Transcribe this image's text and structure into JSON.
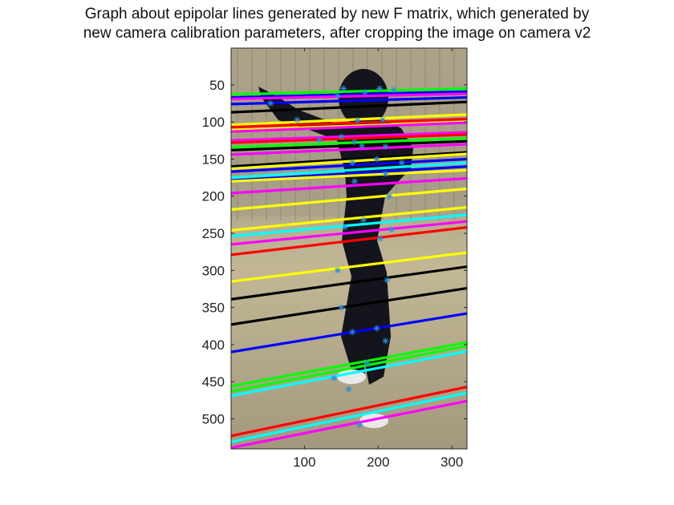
{
  "chart_data": {
    "type": "image",
    "title": [
      "Graph about epipolar lines generated by new F matrix, which generated by",
      "new camera calibration parameters, after cropping the image  on camera v2"
    ],
    "xlim": [
      0.5,
      320.5
    ],
    "ylim": [
      0.5,
      540.5
    ],
    "y_direction": "reversed",
    "x_ticks": [
      100,
      200,
      300
    ],
    "y_ticks": [
      50,
      100,
      150,
      200,
      250,
      300,
      350,
      400,
      450,
      500
    ],
    "grid": false,
    "lines": [
      {
        "color": "#00ff00",
        "y_start": 63,
        "y_end": 55
      },
      {
        "color": "#0000ff",
        "y_start": 67,
        "y_end": 59
      },
      {
        "color": "#ff00ff",
        "y_start": 69,
        "y_end": 62
      },
      {
        "color": "#0000ff",
        "y_start": 76,
        "y_end": 67
      },
      {
        "color": "#000000",
        "y_start": 87,
        "y_end": 73
      },
      {
        "color": "#ffff00",
        "y_start": 104,
        "y_end": 90
      },
      {
        "color": "#ff0000",
        "y_start": 107,
        "y_end": 96
      },
      {
        "color": "#ffff00",
        "y_start": 111,
        "y_end": 100
      },
      {
        "color": "#ff00ff",
        "y_start": 113,
        "y_end": 101
      },
      {
        "color": "#ff00ff",
        "y_start": 125,
        "y_end": 114
      },
      {
        "color": "#ff0000",
        "y_start": 128,
        "y_end": 117
      },
      {
        "color": "#00ff00",
        "y_start": 134,
        "y_end": 122
      },
      {
        "color": "#000000",
        "y_start": 138,
        "y_end": 126
      },
      {
        "color": "#ff00ff",
        "y_start": 144,
        "y_end": 130
      },
      {
        "color": "#000000",
        "y_start": 160,
        "y_end": 141
      },
      {
        "color": "#ffff00",
        "y_start": 163,
        "y_end": 143
      },
      {
        "color": "#0000ff",
        "y_start": 167,
        "y_end": 150
      },
      {
        "color": "#00ffff",
        "y_start": 175,
        "y_end": 155
      },
      {
        "color": "#0000ff",
        "y_start": 179,
        "y_end": 160
      },
      {
        "color": "#ffff00",
        "y_start": 180,
        "y_end": 165
      },
      {
        "color": "#ff00ff",
        "y_start": 196,
        "y_end": 176
      },
      {
        "color": "#ffff00",
        "y_start": 218,
        "y_end": 190
      },
      {
        "color": "#ffff00",
        "y_start": 246,
        "y_end": 215
      },
      {
        "color": "#00ffff",
        "y_start": 254,
        "y_end": 225
      },
      {
        "color": "#ff00ff",
        "y_start": 265,
        "y_end": 234
      },
      {
        "color": "#ff0000",
        "y_start": 279,
        "y_end": 242
      },
      {
        "color": "#ffff00",
        "y_start": 315,
        "y_end": 276
      },
      {
        "color": "#000000",
        "y_start": 339,
        "y_end": 295
      },
      {
        "color": "#000000",
        "y_start": 373,
        "y_end": 324
      },
      {
        "color": "#0000ff",
        "y_start": 410,
        "y_end": 358
      },
      {
        "color": "#00ff00",
        "y_start": 456,
        "y_end": 397
      },
      {
        "color": "#00ff00",
        "y_start": 463,
        "y_end": 402
      },
      {
        "color": "#00ffff",
        "y_start": 469,
        "y_end": 409
      },
      {
        "color": "#ff0000",
        "y_start": 523,
        "y_end": 457
      },
      {
        "color": "#00ffff",
        "y_start": 531,
        "y_end": 465
      },
      {
        "color": "#ff00ff",
        "y_start": 539,
        "y_end": 476
      }
    ],
    "markers": [
      [
        153,
        55
      ],
      [
        182,
        60
      ],
      [
        202,
        55
      ],
      [
        221,
        57
      ],
      [
        54,
        75
      ],
      [
        145,
        65
      ],
      [
        90,
        97
      ],
      [
        172,
        98
      ],
      [
        206,
        97
      ],
      [
        150,
        120
      ],
      [
        120,
        124
      ],
      [
        168,
        127
      ],
      [
        178,
        132
      ],
      [
        210,
        133
      ],
      [
        198,
        150
      ],
      [
        165,
        155
      ],
      [
        232,
        155
      ],
      [
        210,
        170
      ],
      [
        168,
        180
      ],
      [
        215,
        200
      ],
      [
        180,
        232
      ],
      [
        155,
        242
      ],
      [
        218,
        245
      ],
      [
        203,
        257
      ],
      [
        145,
        300
      ],
      [
        212,
        313
      ],
      [
        150,
        350
      ],
      [
        198,
        378
      ],
      [
        165,
        383
      ],
      [
        210,
        395
      ],
      [
        185,
        425
      ],
      [
        140,
        445
      ],
      [
        160,
        460
      ],
      [
        175,
        508
      ]
    ]
  }
}
